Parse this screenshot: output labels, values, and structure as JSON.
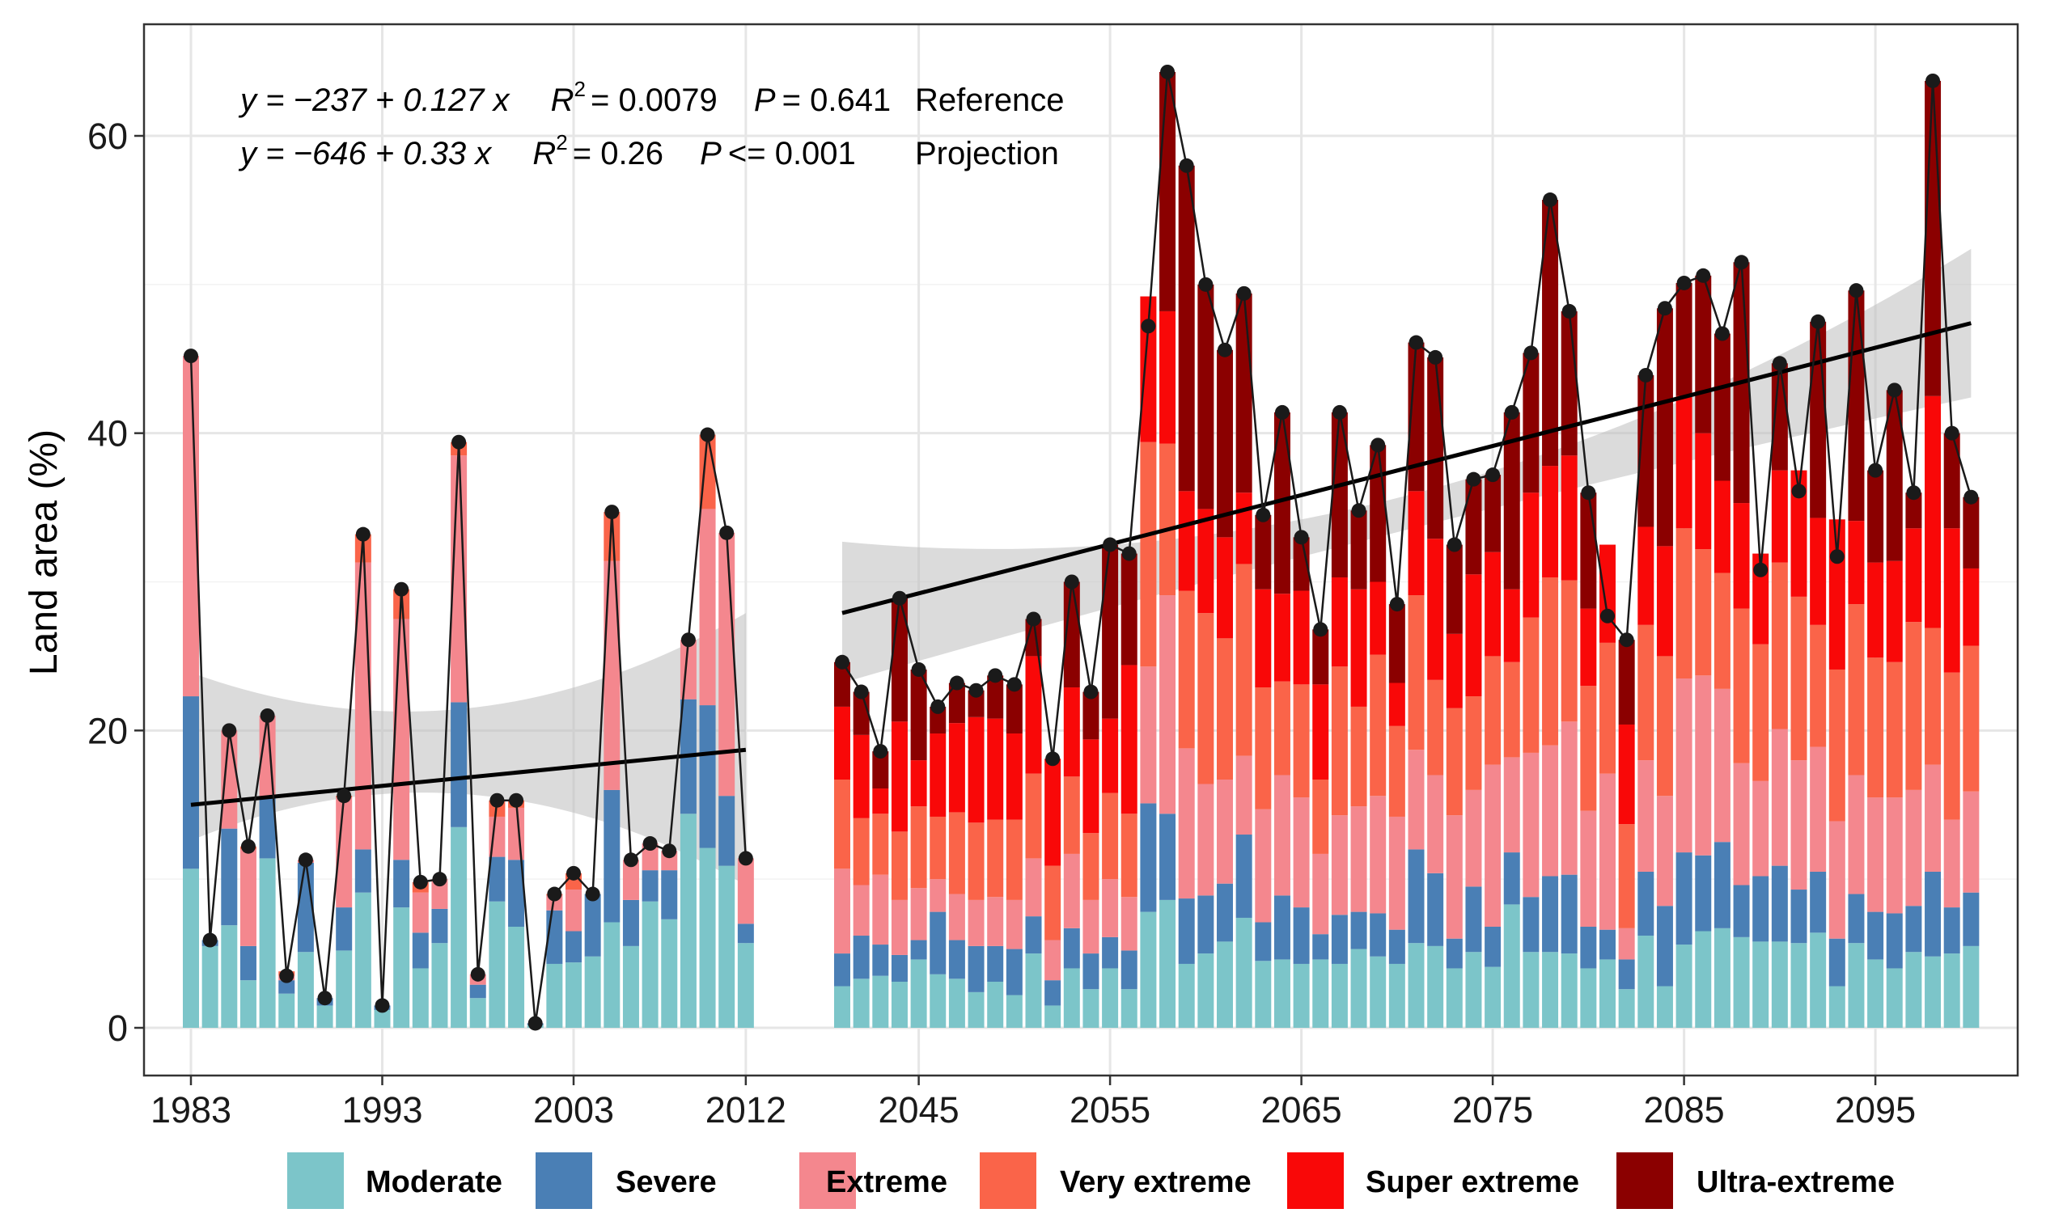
{
  "chart_data": {
    "type": "bar",
    "subtype": "stacked bar with line and linear regression",
    "ylabel": "Land area (%)",
    "ylim": [
      -3,
      67
    ],
    "yticks": [
      0,
      20,
      40,
      60
    ],
    "grid": true,
    "legend_position": "bottom",
    "x_ticks_shown": [
      "1983",
      "1993",
      "2003",
      "2012",
      "2045",
      "2055",
      "2065",
      "2075",
      "2085",
      "2095"
    ],
    "categories": [
      "Moderate",
      "Severe",
      "Extreme",
      "Very extreme",
      "Super extreme",
      "Ultra-extreme"
    ],
    "colors": {
      "Moderate": "#7CC5C9",
      "Severe": "#4A7FB5",
      "Extreme": "#F4878E",
      "Very extreme": "#FA6449",
      "Super extreme": "#F90808",
      "Ultra-extreme": "#8B0000"
    },
    "annotations": [
      {
        "eq_prefix": "y = −237 + 0.127 x",
        "r2": "= 0.0079",
        "p": "= 0.641",
        "label": "Reference"
      },
      {
        "eq_prefix": "y = −646 + 0.33 x",
        "r2": "= 0.26",
        "p": "<= 0.001",
        "label": "Projection"
      }
    ],
    "reference": {
      "years": [
        1983,
        1984,
        1985,
        1986,
        1987,
        1988,
        1989,
        1990,
        1991,
        1992,
        1993,
        1994,
        1995,
        1996,
        1997,
        1998,
        1999,
        2000,
        2001,
        2002,
        2003,
        2004,
        2005,
        2006,
        2007,
        2008,
        2009,
        2010,
        2011,
        2012
      ],
      "total": [
        45.2,
        5.9,
        20.0,
        12.2,
        21.0,
        3.5,
        11.3,
        2.0,
        15.6,
        33.2,
        1.5,
        29.5,
        9.8,
        10.0,
        39.4,
        3.6,
        15.3,
        15.3,
        0.3,
        9.0,
        10.4,
        9.0,
        34.7,
        11.3,
        12.4,
        11.9,
        26.1,
        39.9,
        33.3,
        11.4
      ],
      "series": [
        {
          "name": "Moderate",
          "values": [
            10.7,
            5.5,
            6.9,
            3.2,
            11.4,
            2.3,
            5.1,
            1.5,
            5.2,
            9.1,
            1.2,
            8.1,
            4.0,
            5.7,
            13.5,
            2.0,
            8.5,
            6.8,
            0.2,
            4.3,
            4.4,
            4.8,
            7.1,
            5.5,
            8.5,
            7.3,
            14.4,
            12.1,
            10.9,
            5.7
          ]
        },
        {
          "name": "Severe",
          "values": [
            11.6,
            0.4,
            6.5,
            2.3,
            4.1,
            0.9,
            6.0,
            0.5,
            2.9,
            2.9,
            0.3,
            3.2,
            2.4,
            2.3,
            8.4,
            0.9,
            3.0,
            4.5,
            0.1,
            3.6,
            2.1,
            4.2,
            8.9,
            3.1,
            2.1,
            3.3,
            7.7,
            9.6,
            4.7,
            1.3
          ]
        },
        {
          "name": "Extreme",
          "values": [
            22.9,
            0.0,
            6.6,
            6.5,
            5.5,
            0.3,
            0.2,
            0.0,
            7.4,
            19.3,
            0.0,
            16.2,
            2.7,
            2.0,
            16.6,
            0.7,
            2.7,
            3.5,
            0.0,
            1.0,
            2.8,
            0.0,
            15.4,
            2.7,
            1.8,
            1.3,
            4.0,
            13.2,
            17.7,
            4.4
          ]
        },
        {
          "name": "Very extreme",
          "values": [
            0.0,
            0.0,
            0.0,
            0.2,
            0.0,
            0.3,
            0.0,
            0.0,
            0.1,
            1.9,
            0.0,
            2.0,
            0.7,
            0.0,
            0.9,
            0.0,
            1.1,
            0.5,
            0.0,
            0.1,
            1.1,
            0.0,
            3.3,
            0.0,
            0.0,
            0.0,
            0.0,
            5.0,
            0.0,
            0.0
          ]
        },
        {
          "name": "Super extreme",
          "values": [
            0,
            0,
            0,
            0,
            0,
            0,
            0,
            0,
            0,
            0,
            0,
            0,
            0,
            0,
            0,
            0,
            0,
            0,
            0,
            0,
            0,
            0,
            0,
            0,
            0,
            0,
            0,
            0,
            0,
            0
          ]
        },
        {
          "name": "Ultra-extreme",
          "values": [
            0,
            0,
            0,
            0,
            0,
            0,
            0,
            0,
            0,
            0,
            0,
            0,
            0,
            0,
            0,
            0,
            0,
            0,
            0,
            0,
            0,
            0,
            0,
            0,
            0,
            0,
            0,
            0,
            0,
            0
          ]
        }
      ],
      "trend": {
        "start": 15.0,
        "end": 18.7,
        "ci_lower": [
          12.6,
          15.7,
          9.6
        ],
        "ci_upper": [
          23.9,
          21.5,
          27.9
        ]
      }
    },
    "projection": {
      "years": [
        2041,
        2042,
        2043,
        2044,
        2045,
        2046,
        2047,
        2048,
        2049,
        2050,
        2051,
        2052,
        2053,
        2054,
        2055,
        2056,
        2057,
        2058,
        2059,
        2060,
        2061,
        2062,
        2063,
        2064,
        2065,
        2066,
        2067,
        2068,
        2069,
        2070,
        2071,
        2072,
        2073,
        2074,
        2075,
        2076,
        2077,
        2078,
        2079,
        2080,
        2081,
        2082,
        2083,
        2084,
        2085,
        2086,
        2087,
        2088,
        2089,
        2090,
        2091,
        2092,
        2093,
        2094,
        2095,
        2096,
        2097,
        2098,
        2099,
        2100
      ],
      "total": [
        24.6,
        22.6,
        18.6,
        28.9,
        24.1,
        21.6,
        23.2,
        22.7,
        23.7,
        23.1,
        27.5,
        18.1,
        30.0,
        22.6,
        32.5,
        31.9,
        47.2,
        64.3,
        58.0,
        50.0,
        45.6,
        49.4,
        34.5,
        41.4,
        33.0,
        26.8,
        41.4,
        34.8,
        39.2,
        28.5,
        46.1,
        45.1,
        32.5,
        36.9,
        37.2,
        41.4,
        45.4,
        55.7,
        48.2,
        36.0,
        27.7,
        26.1,
        43.9,
        48.4,
        50.1,
        50.6,
        46.7,
        51.5,
        30.8,
        44.7,
        36.1,
        47.5,
        31.7,
        49.6,
        37.5,
        42.9,
        36.0,
        63.7,
        40.0,
        35.7
      ],
      "series": [
        {
          "name": "Moderate",
          "values": [
            2.8,
            3.3,
            3.5,
            3.1,
            4.6,
            3.6,
            3.3,
            2.4,
            3.1,
            2.2,
            5.0,
            1.5,
            4.0,
            2.6,
            4.0,
            2.6,
            7.8,
            8.6,
            4.3,
            5.0,
            5.8,
            7.4,
            4.5,
            4.6,
            4.3,
            4.6,
            4.3,
            5.3,
            4.8,
            4.3,
            5.7,
            5.5,
            4.0,
            5.1,
            4.1,
            8.3,
            5.1,
            5.1,
            5.0,
            4.0,
            4.6,
            2.6,
            6.2,
            2.8,
            5.6,
            6.5,
            6.7,
            6.1,
            5.8,
            5.8,
            5.7,
            6.4,
            2.8,
            5.7,
            4.6,
            4.0,
            5.1,
            4.8,
            5.0,
            5.5
          ]
        },
        {
          "name": "Severe",
          "values": [
            2.2,
            2.9,
            2.1,
            1.8,
            1.3,
            4.2,
            2.6,
            3.1,
            2.4,
            3.1,
            2.5,
            1.7,
            2.7,
            2.4,
            2.1,
            2.6,
            7.3,
            5.8,
            4.4,
            3.9,
            3.9,
            5.6,
            2.6,
            4.3,
            3.8,
            1.7,
            3.3,
            2.5,
            2.9,
            2.3,
            6.3,
            4.9,
            2.0,
            4.4,
            2.7,
            3.5,
            3.7,
            5.1,
            5.3,
            2.8,
            2.0,
            2.0,
            4.3,
            5.4,
            6.2,
            5.1,
            5.8,
            3.5,
            4.4,
            5.1,
            3.6,
            4.1,
            3.2,
            3.3,
            3.2,
            3.7,
            3.1,
            5.7,
            3.1,
            3.6
          ]
        },
        {
          "name": "Extreme",
          "values": [
            5.7,
            3.4,
            4.7,
            3.7,
            3.5,
            2.2,
            3.1,
            3.1,
            3.3,
            3.3,
            3.9,
            2.7,
            5.0,
            3.6,
            3.9,
            3.6,
            9.2,
            14.7,
            10.1,
            7.5,
            7.0,
            5.3,
            7.6,
            8.1,
            7.4,
            5.4,
            6.7,
            7.1,
            7.9,
            7.6,
            6.7,
            6.6,
            8.3,
            6.5,
            10.9,
            6.4,
            9.7,
            8.8,
            10.3,
            7.8,
            10.5,
            2.1,
            7.5,
            7.4,
            11.7,
            12.1,
            10.3,
            8.2,
            6.4,
            9.2,
            8.7,
            8.4,
            7.9,
            8.0,
            7.7,
            7.8,
            7.8,
            7.2,
            5.9,
            6.8
          ]
        },
        {
          "name": "Very extreme",
          "values": [
            6.0,
            4.5,
            4.1,
            4.6,
            5.5,
            4.2,
            5.5,
            5.2,
            5.2,
            5.4,
            5.7,
            5.0,
            5.2,
            4.5,
            5.8,
            5.6,
            15.1,
            10.2,
            10.6,
            11.5,
            9.5,
            12.9,
            8.2,
            6.3,
            7.6,
            5.0,
            10.0,
            6.7,
            9.5,
            6.1,
            10.4,
            6.4,
            7.2,
            6.3,
            7.3,
            6.4,
            9.1,
            11.3,
            9.5,
            8.4,
            8.8,
            7.0,
            9.1,
            9.4,
            10.1,
            8.5,
            7.8,
            10.4,
            9.2,
            11.2,
            11.0,
            8.2,
            10.2,
            11.5,
            9.4,
            9.1,
            11.3,
            9.2,
            9.9,
            9.8
          ]
        },
        {
          "name": "Super extreme",
          "values": [
            4.9,
            5.6,
            1.7,
            7.4,
            3.1,
            5.6,
            6.0,
            7.1,
            6.8,
            5.8,
            7.9,
            7.2,
            6.0,
            6.3,
            5.0,
            10.0,
            9.8,
            8.9,
            6.7,
            7.0,
            6.8,
            4.8,
            6.6,
            5.9,
            6.3,
            6.4,
            6.0,
            7.9,
            4.9,
            2.9,
            7.0,
            9.5,
            5.0,
            8.2,
            7.0,
            4.9,
            8.4,
            7.5,
            8.4,
            5.2,
            6.6,
            6.7,
            6.6,
            7.4,
            8.9,
            7.8,
            6.2,
            7.1,
            6.1,
            6.2,
            8.5,
            7.2,
            10.1,
            5.6,
            6.4,
            6.8,
            6.3,
            15.6,
            9.7,
            5.2
          ]
        },
        {
          "name": "Ultra-extreme",
          "values": [
            3.0,
            2.9,
            2.5,
            8.3,
            6.1,
            1.8,
            2.7,
            1.8,
            2.9,
            3.3,
            2.5,
            0.0,
            7.1,
            3.2,
            11.7,
            7.5,
            -2.0,
            16.1,
            21.9,
            15.1,
            12.6,
            13.4,
            5.0,
            12.2,
            3.6,
            3.7,
            11.1,
            5.3,
            9.2,
            5.3,
            10.0,
            12.2,
            6.0,
            6.4,
            5.2,
            11.9,
            9.4,
            17.9,
            9.7,
            7.8,
            -4.8,
            5.7,
            10.2,
            16.0,
            7.6,
            10.6,
            9.9,
            16.2,
            -1.1,
            7.2,
            -1.4,
            13.2,
            -1.5,
            15.5,
            6.2,
            11.5,
            2.4,
            21.2,
            6.4,
            4.8
          ]
        }
      ],
      "trend": {
        "start": 27.9,
        "end": 47.4,
        "ci_lower": [
          23.2,
          33.5,
          42.4
        ],
        "ci_upper": [
          32.7,
          35.8,
          52.4
        ]
      }
    }
  }
}
